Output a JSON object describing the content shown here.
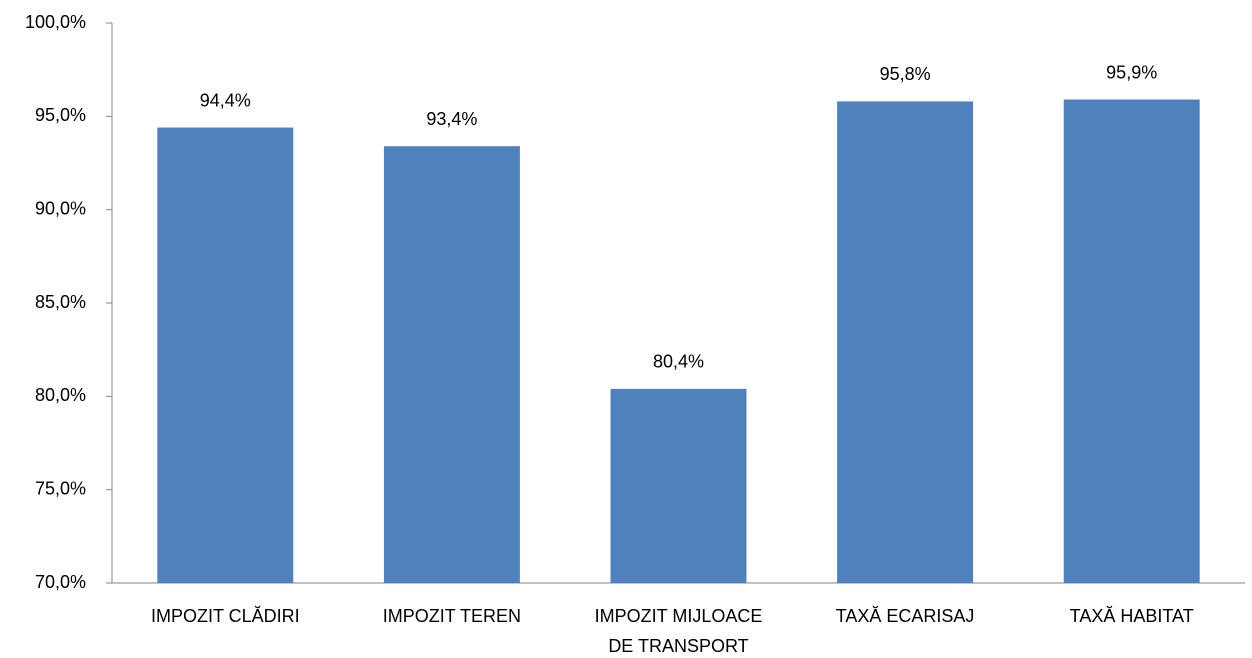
{
  "chart_data": {
    "type": "bar",
    "categories": [
      "IMPOZIT CLĂDIRI",
      "IMPOZIT TEREN",
      "IMPOZIT MIJLOACE DE TRANSPORT",
      "TAXĂ ECARISAJ",
      "TAXĂ HABITAT"
    ],
    "values": [
      94.4,
      93.4,
      80.4,
      95.8,
      95.9
    ],
    "value_labels": [
      "94,4%",
      "93,4%",
      "80,4%",
      "95,8%",
      "95,9%"
    ],
    "color": "#4f81bd",
    "ylim": [
      70,
      100
    ],
    "yticks": [
      {
        "value": 70,
        "label": "70,0%"
      },
      {
        "value": 75,
        "label": "75,0%"
      },
      {
        "value": 80,
        "label": "80,0%"
      },
      {
        "value": 85,
        "label": "85,0%"
      },
      {
        "value": 90,
        "label": "90,0%"
      },
      {
        "value": 95,
        "label": "95,0%"
      },
      {
        "value": 100,
        "label": "100,0%"
      }
    ],
    "grid": false
  }
}
